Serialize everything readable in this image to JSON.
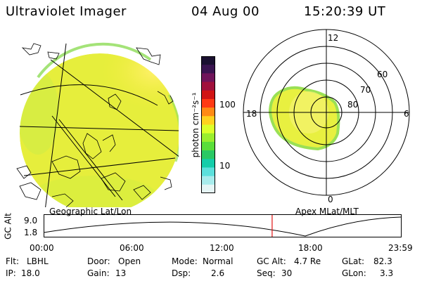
{
  "header": {
    "title": "Ultraviolet Imager",
    "date": "04 Aug 00",
    "time": "15:20:39 UT"
  },
  "colorbar": {
    "unit": "photon cm⁻²s⁻¹",
    "ticks": [
      "100",
      "10"
    ],
    "colors": [
      "#1a1030",
      "#3a1450",
      "#70145a",
      "#a0103c",
      "#d01414",
      "#ff3a14",
      "#ff8a14",
      "#ffd21e",
      "#dcff2a",
      "#9aee2e",
      "#5ade3a",
      "#2ac864",
      "#14cdaa",
      "#5ce0dc",
      "#a8ecec",
      "#e6f6f6"
    ]
  },
  "polar_plot": {
    "mlt_labels": [
      "12",
      "18",
      "6",
      "0"
    ],
    "lat_labels": [
      "60",
      "70",
      "80"
    ]
  },
  "map_labels": {
    "left": "Geographic Lat/Lon",
    "right": "Apex MLat/MLT"
  },
  "alt_plot": {
    "ylabel": "GC Alt",
    "yticks": [
      "9.0",
      "1.8"
    ],
    "xticks": [
      "00:00",
      "06:00",
      "12:00",
      "18:00",
      "23:59"
    ],
    "current_time_fraction": 0.6396
  },
  "footer": {
    "row1": [
      {
        "label": "Flt:",
        "value": "LBHL"
      },
      {
        "label": "Door:",
        "value": "Open"
      },
      {
        "label": "Mode:",
        "value": "Normal"
      },
      {
        "label": "GC Alt:",
        "value": "4.7 Re"
      },
      {
        "label": "GLat:",
        "value": "82.3"
      }
    ],
    "row2": [
      {
        "label": "IP:",
        "value": "18.0"
      },
      {
        "label": "Gain:",
        "value": "13"
      },
      {
        "label": "Dsp:",
        "value": "2.6"
      },
      {
        "label": "Seq:",
        "value": "30"
      },
      {
        "label": "GLon:",
        "value": "3.3"
      }
    ]
  }
}
